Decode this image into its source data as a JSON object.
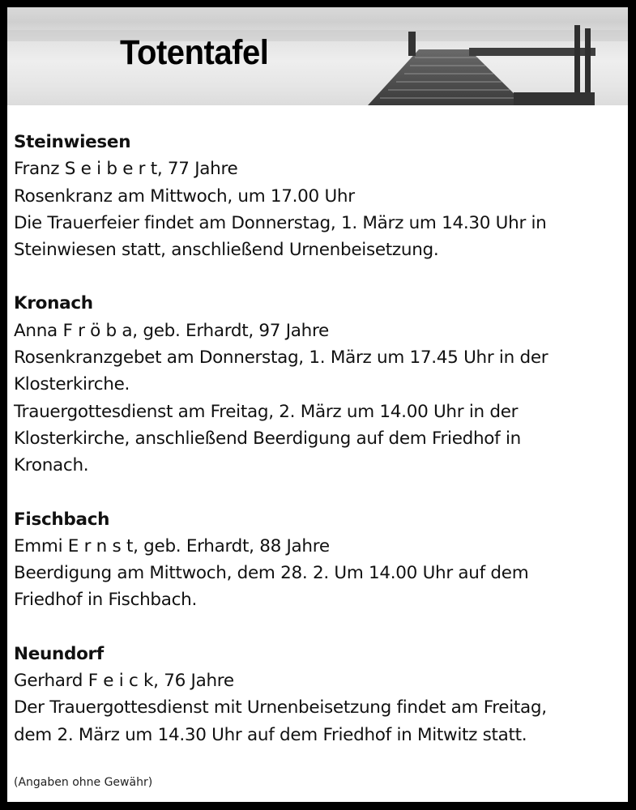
{
  "header": {
    "title": "Totentafel"
  },
  "sections": [
    {
      "place": "Steinwiesen",
      "lines": [
        "Franz S e i b e r t, 77 Jahre",
        "Rosenkranz am Mittwoch, um 17.00 Uhr",
        "Die Trauerfeier findet am Donnerstag, 1. März um 14.30 Uhr in",
        "Steinwiesen statt, anschließend Urnenbeisetzung."
      ]
    },
    {
      "place": "Kronach",
      "lines": [
        "Anna F r ö b a, geb. Erhardt, 97 Jahre",
        "Rosenkranzgebet am Donnerstag, 1. März um 17.45 Uhr in der",
        "Klosterkirche.",
        "Trauergottesdienst am Freitag, 2. März um 14.00 Uhr in der",
        "Klosterkirche, anschließend Beerdigung auf dem Friedhof in",
        "Kronach."
      ]
    },
    {
      "place": "Fischbach",
      "lines": [
        "Emmi E r n s t, geb. Erhardt, 88 Jahre",
        "Beerdigung am Mittwoch, dem 28. 2. Um 14.00 Uhr auf dem",
        "Friedhof in Fischbach."
      ]
    },
    {
      "place": "Neundorf",
      "lines": [
        "Gerhard F e i c k, 76 Jahre",
        "Der Trauergottesdienst mit Urnenbeisetzung findet am Freitag,",
        "dem 2. März um 14.30 Uhr auf dem Friedhof in Mitwitz statt."
      ]
    }
  ],
  "footer": {
    "disclaimer": "(Angaben ohne Gewähr)"
  }
}
